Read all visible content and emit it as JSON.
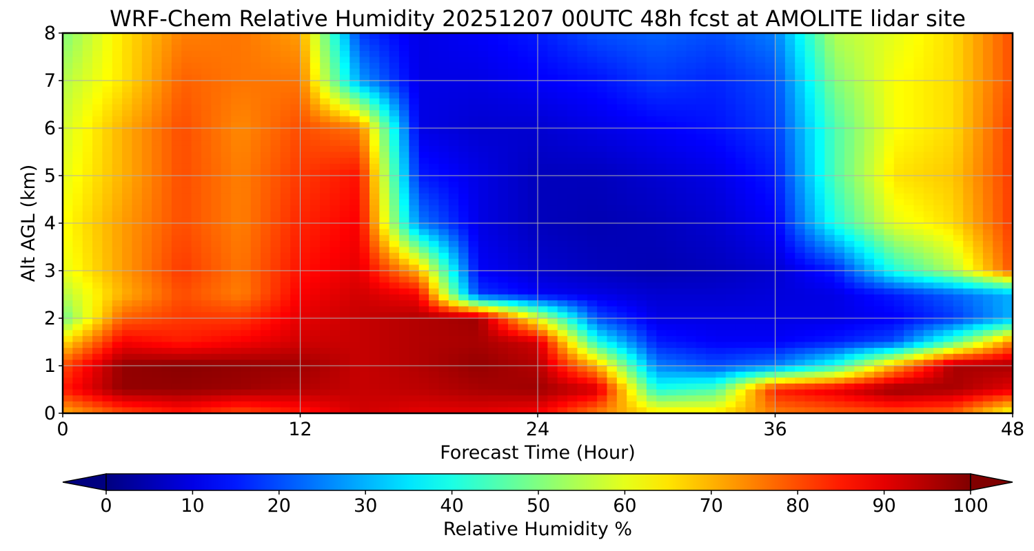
{
  "chart_data": {
    "type": "heatmap",
    "title": "WRF-Chem Relative Humidity 20251207 00UTC 48h fcst at AMOLITE lidar site",
    "xlabel": "Forecast Time (Hour)",
    "ylabel": "Alt AGL (km)",
    "xlim": [
      0,
      48
    ],
    "ylim": [
      0,
      8
    ],
    "xticks": [
      "0",
      "12",
      "24",
      "36",
      "48"
    ],
    "yticks": [
      "0",
      "1",
      "2",
      "3",
      "4",
      "5",
      "6",
      "7",
      "8"
    ],
    "grid": true,
    "colormap": "jet",
    "colorbar": {
      "label": "Relative Humidity %",
      "min": 0,
      "max": 100,
      "ticks": [
        "0",
        "10",
        "20",
        "30",
        "40",
        "50",
        "60",
        "70",
        "80",
        "90",
        "100"
      ],
      "extend": "both"
    },
    "x_hours": [
      0,
      3,
      6,
      9,
      12,
      15,
      18,
      21,
      24,
      27,
      30,
      33,
      36,
      39,
      42,
      45,
      48
    ],
    "y_km": [
      0,
      0.5,
      1,
      1.5,
      2,
      2.5,
      3,
      4,
      5,
      6,
      7,
      8
    ],
    "values": [
      [
        70,
        80,
        85,
        80,
        85,
        92,
        90,
        90,
        88,
        75,
        65,
        65,
        75,
        78,
        80,
        78,
        60
      ],
      [
        85,
        98,
        98,
        97,
        95,
        93,
        94,
        96,
        97,
        92,
        40,
        45,
        85,
        90,
        98,
        96,
        90
      ],
      [
        80,
        98,
        99,
        98,
        97,
        93,
        95,
        98,
        95,
        70,
        25,
        20,
        25,
        40,
        70,
        96,
        96
      ],
      [
        65,
        88,
        85,
        88,
        92,
        93,
        95,
        96,
        92,
        40,
        15,
        12,
        12,
        15,
        20,
        45,
        75
      ],
      [
        48,
        78,
        82,
        82,
        90,
        93,
        95,
        97,
        60,
        20,
        10,
        10,
        10,
        10,
        12,
        18,
        30
      ],
      [
        55,
        70,
        80,
        75,
        88,
        92,
        88,
        18,
        12,
        10,
        8,
        8,
        9,
        10,
        15,
        22,
        30
      ],
      [
        60,
        72,
        82,
        76,
        86,
        90,
        70,
        12,
        8,
        6,
        5,
        6,
        8,
        15,
        40,
        55,
        80
      ],
      [
        62,
        72,
        80,
        75,
        84,
        88,
        25,
        10,
        6,
        5,
        6,
        8,
        12,
        40,
        60,
        66,
        82
      ],
      [
        60,
        70,
        80,
        75,
        82,
        86,
        15,
        10,
        6,
        6,
        8,
        10,
        15,
        45,
        65,
        68,
        82
      ],
      [
        58,
        70,
        80,
        74,
        80,
        76,
        10,
        8,
        8,
        10,
        12,
        14,
        18,
        45,
        62,
        66,
        82
      ],
      [
        55,
        65,
        78,
        76,
        76,
        28,
        10,
        10,
        12,
        14,
        18,
        16,
        20,
        50,
        62,
        66,
        80
      ],
      [
        50,
        65,
        75,
        76,
        72,
        18,
        10,
        12,
        15,
        20,
        22,
        20,
        25,
        55,
        60,
        66,
        80
      ]
    ]
  }
}
